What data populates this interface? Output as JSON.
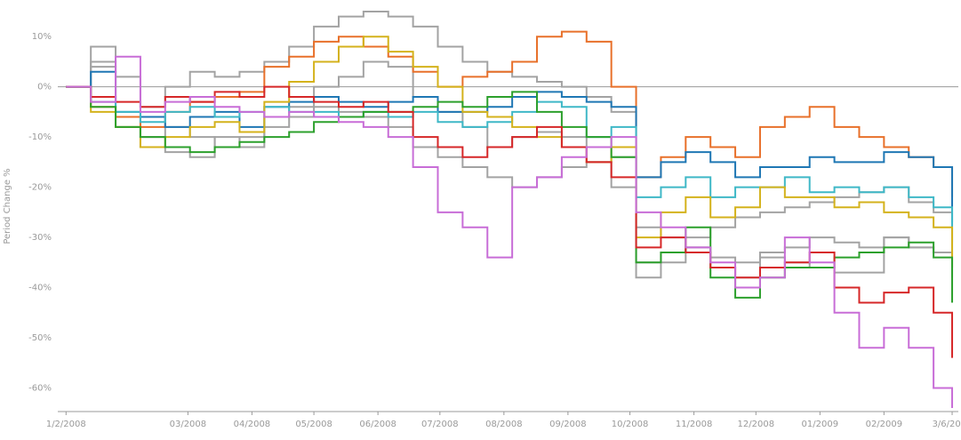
{
  "chart_data": {
    "type": "line",
    "y_label": "Period Change %",
    "x": [
      0,
      12,
      24,
      36,
      48,
      60,
      72,
      84,
      96,
      108,
      120,
      132,
      144,
      156,
      168,
      180,
      192,
      204,
      216,
      228,
      240,
      252,
      264,
      276,
      288,
      300,
      312,
      324,
      336,
      348,
      360,
      372,
      384,
      396,
      408,
      420,
      429
    ],
    "xlim": [
      -4,
      432
    ],
    "xticks": [
      {
        "value": 0,
        "label": "1/2/2008"
      },
      {
        "value": 59,
        "label": "03/2008"
      },
      {
        "value": 90,
        "label": "04/2008"
      },
      {
        "value": 120,
        "label": "05/2008"
      },
      {
        "value": 151,
        "label": "06/2008"
      },
      {
        "value": 181,
        "label": "07/2008"
      },
      {
        "value": 212,
        "label": "08/2008"
      },
      {
        "value": 243,
        "label": "09/2008"
      },
      {
        "value": 273,
        "label": "10/2008"
      },
      {
        "value": 304,
        "label": "11/2008"
      },
      {
        "value": 334,
        "label": "12/2008"
      },
      {
        "value": 365,
        "label": "01/2009"
      },
      {
        "value": 396,
        "label": "02/2009"
      },
      {
        "value": 429,
        "label": "3/6/2009"
      }
    ],
    "ylim": [
      -64.7,
      17.3
    ],
    "yticks": [
      {
        "value": -60,
        "label": "-60%"
      },
      {
        "value": -50,
        "label": "-50%"
      },
      {
        "value": -40,
        "label": "-40%"
      },
      {
        "value": -30,
        "label": "-30%"
      },
      {
        "value": -20,
        "label": "-20%"
      },
      {
        "value": -10,
        "label": "-10%"
      },
      {
        "value": 0,
        "label": "0%"
      },
      {
        "value": 10,
        "label": "10%"
      }
    ],
    "zero_line": true,
    "series": [
      {
        "color": "#a3a3a3",
        "values": [
          0,
          4,
          2,
          -4,
          0,
          3,
          2,
          3,
          5,
          8,
          12,
          14,
          15,
          14,
          12,
          8,
          5,
          3,
          2,
          1,
          0,
          -2,
          -5,
          -28,
          -30,
          -32,
          -34,
          -35,
          -33,
          -32,
          -30,
          -31,
          -32,
          -30,
          -32,
          -33,
          -36
        ]
      },
      {
        "color": "#a3a3a3",
        "values": [
          0,
          5,
          -8,
          -12,
          -13,
          -14,
          -10,
          -12,
          -8,
          -6,
          -4,
          -5,
          -6,
          -8,
          -12,
          -14,
          -16,
          -18,
          -20,
          -18,
          -16,
          -15,
          -14,
          -38,
          -35,
          -30,
          -28,
          -26,
          -25,
          -24,
          -23,
          -22,
          -21,
          -20,
          -23,
          -25,
          -31
        ]
      },
      {
        "color": "#a3a3a3",
        "values": [
          0,
          8,
          -6,
          -10,
          -8,
          -10,
          -12,
          -10,
          -6,
          -4,
          0,
          2,
          5,
          4,
          -2,
          -5,
          -8,
          -12,
          -10,
          -9,
          -10,
          -15,
          -20,
          -35,
          -33,
          -32,
          -36,
          -38,
          -34,
          -35,
          -36,
          -37,
          -37,
          -30,
          -32,
          -33,
          -38
        ]
      },
      {
        "color": "#e8702a",
        "values": [
          0,
          -4,
          -6,
          -8,
          -5,
          -3,
          -2,
          -1,
          4,
          6,
          9,
          10,
          8,
          6,
          3,
          0,
          2,
          3,
          5,
          10,
          11,
          9,
          0,
          -18,
          -14,
          -10,
          -12,
          -14,
          -8,
          -6,
          -4,
          -8,
          -10,
          -12,
          -14,
          -16,
          -22
        ]
      },
      {
        "color": "#1f77b4",
        "values": [
          0,
          3,
          -5,
          -6,
          -8,
          -6,
          -5,
          -8,
          -4,
          -3,
          -2,
          -3,
          -4,
          -3,
          -2,
          -5,
          -5,
          -4,
          -2,
          -1,
          -2,
          -3,
          -4,
          -18,
          -15,
          -13,
          -15,
          -18,
          -16,
          -16,
          -14,
          -15,
          -15,
          -13,
          -14,
          -16,
          -27
        ]
      },
      {
        "color": "#3fb8c7",
        "values": [
          0,
          -3,
          -5,
          -7,
          -5,
          -4,
          -6,
          -5,
          -4,
          -5,
          -5,
          -6,
          -5,
          -6,
          -5,
          -7,
          -8,
          -7,
          -5,
          -3,
          -4,
          -10,
          -8,
          -22,
          -20,
          -18,
          -22,
          -20,
          -20,
          -18,
          -21,
          -20,
          -21,
          -20,
          -22,
          -24,
          -33
        ]
      },
      {
        "color": "#d4b21c",
        "values": [
          0,
          -5,
          -8,
          -12,
          -10,
          -8,
          -7,
          -9,
          -3,
          1,
          5,
          8,
          10,
          7,
          4,
          0,
          -5,
          -6,
          -8,
          -10,
          -12,
          -15,
          -12,
          -30,
          -25,
          -22,
          -26,
          -24,
          -20,
          -22,
          -22,
          -24,
          -23,
          -25,
          -26,
          -28,
          -36
        ]
      },
      {
        "color": "#2ca02c",
        "values": [
          0,
          -4,
          -8,
          -10,
          -12,
          -13,
          -12,
          -11,
          -10,
          -9,
          -7,
          -6,
          -5,
          -5,
          -4,
          -3,
          -4,
          -2,
          -1,
          -5,
          -8,
          -10,
          -14,
          -35,
          -33,
          -28,
          -38,
          -42,
          -38,
          -36,
          -36,
          -34,
          -33,
          -32,
          -31,
          -34,
          -43
        ]
      },
      {
        "color": "#d62728",
        "values": [
          0,
          -2,
          -3,
          -4,
          -2,
          -3,
          -1,
          -2,
          0,
          -2,
          -3,
          -4,
          -3,
          -5,
          -10,
          -12,
          -14,
          -12,
          -10,
          -8,
          -12,
          -15,
          -18,
          -32,
          -30,
          -33,
          -36,
          -38,
          -36,
          -35,
          -33,
          -40,
          -43,
          -41,
          -40,
          -45,
          -54
        ]
      },
      {
        "color": "#c86dd7",
        "values": [
          0,
          -3,
          6,
          -5,
          -3,
          -2,
          -4,
          -5,
          -6,
          -5,
          -6,
          -7,
          -8,
          -10,
          -16,
          -25,
          -28,
          -34,
          -20,
          -18,
          -14,
          -12,
          -10,
          -25,
          -28,
          -32,
          -35,
          -40,
          -38,
          -30,
          -35,
          -45,
          -52,
          -48,
          -52,
          -60,
          -64
        ]
      }
    ]
  }
}
